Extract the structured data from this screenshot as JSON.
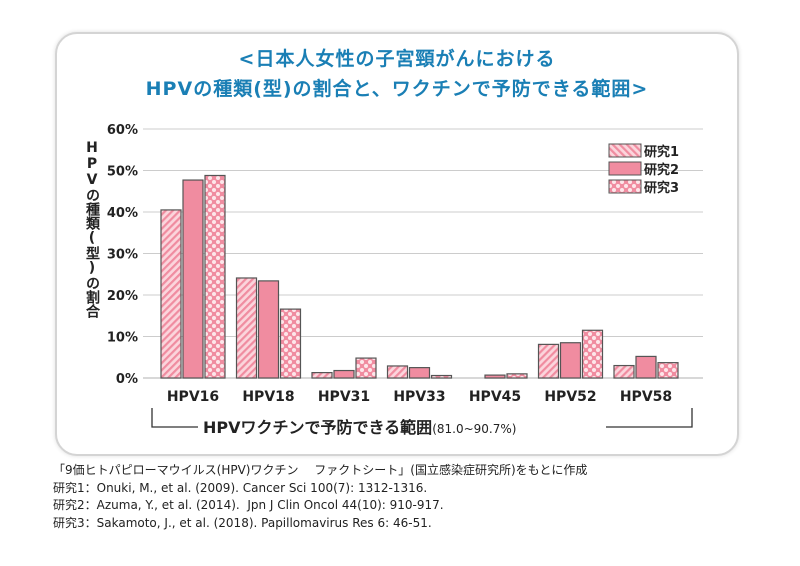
{
  "chart_data": {
    "type": "bar",
    "title": [
      "<日本人女性の子宮頸がんにおける",
      "HPVの種類(型)の割合と、ワクチンで予防できる範囲>"
    ],
    "ylabel": "HPVの種類(型)の割合",
    "xlabel": "",
    "ylim": [
      0,
      60
    ],
    "yticks": [
      "0%",
      "10%",
      "20%",
      "30%",
      "40%",
      "50%",
      "60%"
    ],
    "grid": true,
    "legend_position": "top-right",
    "categories": [
      "HPV16",
      "HPV18",
      "HPV31",
      "HPV33",
      "HPV45",
      "HPV52",
      "HPV58"
    ],
    "series": [
      {
        "name": "研究1",
        "pattern": "diagonal-stripes",
        "values": [
          40.5,
          24.1,
          1.3,
          2.9,
          0,
          8.1,
          3.0
        ]
      },
      {
        "name": "研究2",
        "pattern": "solid",
        "values": [
          47.7,
          23.4,
          1.8,
          2.5,
          0.7,
          8.5,
          5.2
        ]
      },
      {
        "name": "研究3",
        "pattern": "dots",
        "values": [
          48.8,
          16.6,
          4.8,
          0.6,
          1.0,
          11.5,
          3.7
        ]
      }
    ],
    "bracket_label": "HPVワクチンで予防できる範囲",
    "bracket_range": "(81.0~90.7%)",
    "colors": {
      "bar": "#f08ca0",
      "bar_light": "#fbd5dc",
      "outline": "#555555",
      "title": "#1a7fb5",
      "grid": "#cccccc"
    }
  },
  "notes": [
    "「9価ヒトパピローマウイルス(HPV)ワクチン　 ファクトシート」(国立感染症研究所)をもとに作成",
    "研究1：Onuki, M., et al. (2009). Cancer Sci 100(7): 1312-1316.",
    "研究2：Azuma, Y., et al. (2014).  Jpn J Clin Oncol 44(10): 910-917.",
    "研究3：Sakamoto, J., et al. (2018). Papillomavirus Res 6: 46-51."
  ]
}
